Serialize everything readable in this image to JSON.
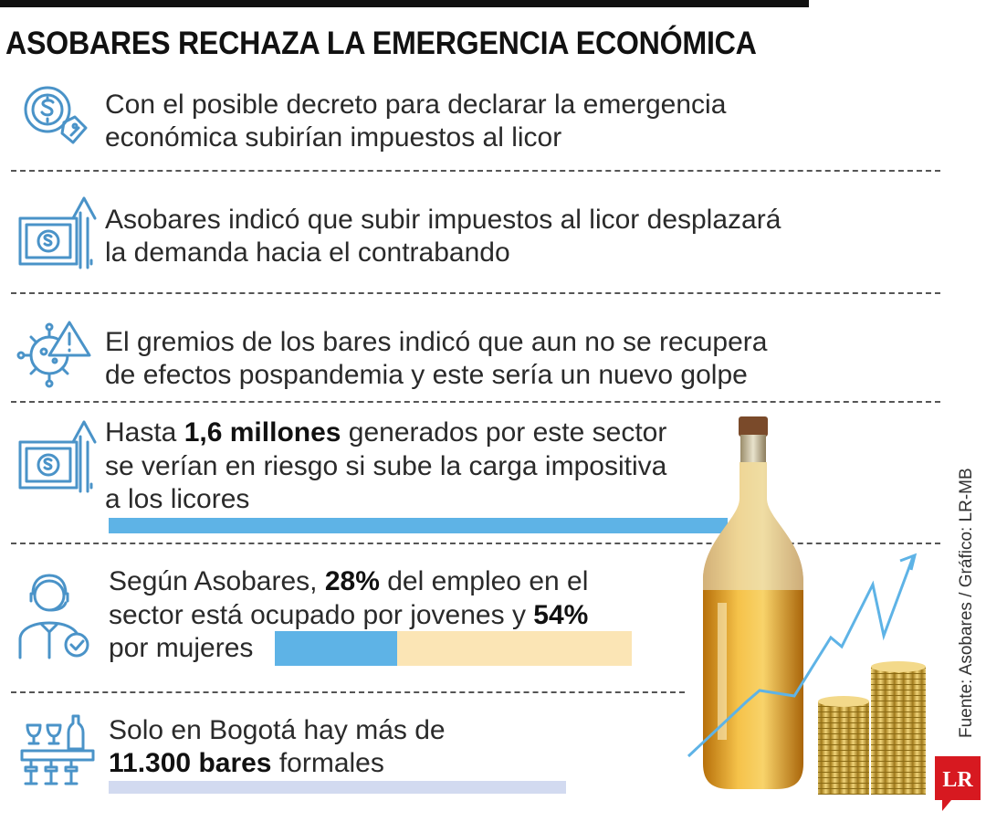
{
  "title": "ASOBARES RECHAZA LA EMERGENCIA ECONÓMICA",
  "items": [
    {
      "icon": "money-tag-icon",
      "lines": [
        "Con el posible decreto para declarar la emergencia",
        "económica subirían impuestos al licor"
      ]
    },
    {
      "icon": "banknote-rising-icon",
      "lines": [
        "Asobares indicó que subir impuestos al licor desplazará",
        "la demanda hacia el contrabando"
      ]
    },
    {
      "icon": "virus-warning-icon",
      "lines": [
        "El gremios de los bares indicó que aun no se recupera",
        "de efectos pospandemia y este sería un nuevo golpe"
      ]
    },
    {
      "icon": "banknote-rising-icon",
      "pre": "Hasta ",
      "bold": "1,6 millones",
      "post": " generados por este sector",
      "lines": [
        "se verían en riesgo si sube la carga impositiva",
        "a los licores"
      ]
    },
    {
      "icon": "waiter-check-icon",
      "line1_pre": "Según Asobares, ",
      "line1_bold": "28%",
      "line1_post": " del empleo en el",
      "line2_pre": "sector está ocupado por jovenes y ",
      "line2_bold": "54%",
      "line3": "por mujeres"
    },
    {
      "icon": "bar-counter-icon",
      "line1": "Solo en Bogotá hay más de",
      "line2_bold": "11.300 bares",
      "line2_post": " formales"
    }
  ],
  "stats": {
    "youth_employment_pct": 28,
    "women_employment_pct": 54
  },
  "colors": {
    "accent_blue": "#5eb3e6",
    "pale_yellow": "#fbe5b5",
    "pale_lavender": "#d2daf0",
    "icon_blue": "#4a93c8",
    "logo_red": "#d71920"
  },
  "illustration": "liquor-bottle-coins-rising-chart",
  "source": "Fuente: Asobares / Gráfico: LR-MB",
  "logo": "LR"
}
